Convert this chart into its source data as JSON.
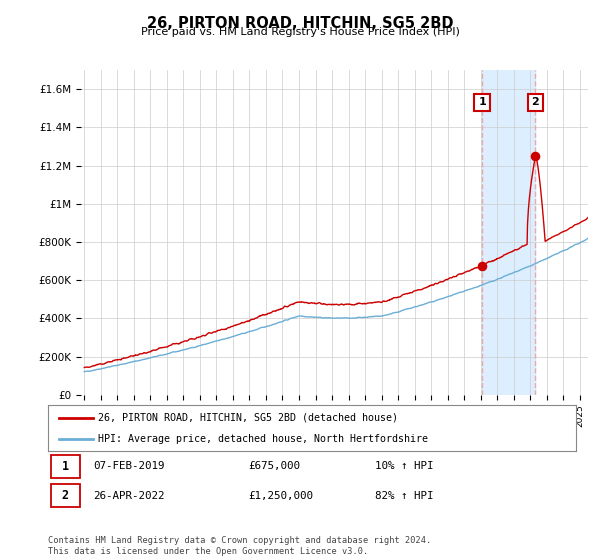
{
  "title": "26, PIRTON ROAD, HITCHIN, SG5 2BD",
  "subtitle": "Price paid vs. HM Land Registry's House Price Index (HPI)",
  "ylabel_ticks": [
    "£0",
    "£200K",
    "£400K",
    "£600K",
    "£800K",
    "£1M",
    "£1.2M",
    "£1.4M",
    "£1.6M"
  ],
  "ytick_values": [
    0,
    200000,
    400000,
    600000,
    800000,
    1000000,
    1200000,
    1400000,
    1600000
  ],
  "ylim": [
    0,
    1700000
  ],
  "xlim_start": 1994.8,
  "xlim_end": 2025.5,
  "t1": 2019.09,
  "t2": 2022.32,
  "p1": 675000,
  "p2": 1250000,
  "hpi1": 613636,
  "hpi2": 686813,
  "legend_line1": "26, PIRTON ROAD, HITCHIN, SG5 2BD (detached house)",
  "legend_line2": "HPI: Average price, detached house, North Hertfordshire",
  "footer": "Contains HM Land Registry data © Crown copyright and database right 2024.\nThis data is licensed under the Open Government Licence v3.0.",
  "hpi_color": "#6baed6",
  "price_color": "#cc0000",
  "dashed_color": "#e8aaaa",
  "shade_color": "#ddeeff",
  "grid_color": "#cccccc",
  "background_color": "#ffffff"
}
